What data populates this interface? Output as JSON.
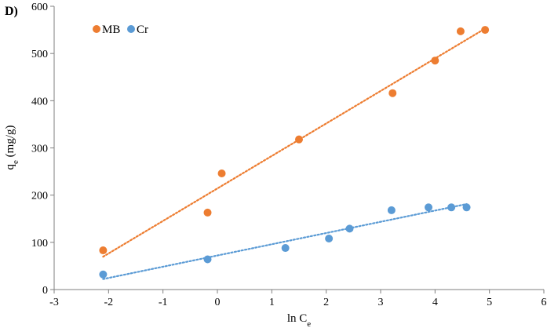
{
  "chart_data": {
    "type": "scatter",
    "panel_label": "D)",
    "xlabel": "ln C",
    "xlabel_sub": "e",
    "ylabel": "q",
    "ylabel_sub": "e",
    "ylabel_unit": " (mg/g)",
    "xlim": [
      -3,
      6
    ],
    "ylim": [
      0,
      600
    ],
    "x_ticks": [
      -3,
      -2,
      -1,
      0,
      1,
      2,
      3,
      4,
      5,
      6
    ],
    "y_ticks": [
      0,
      100,
      200,
      300,
      400,
      500,
      600
    ],
    "grid": false,
    "legend_position": "top-left",
    "series": [
      {
        "name": "MB",
        "color": "#ED7D31",
        "trendline": "linear dotted",
        "points": [
          {
            "x": -2.1,
            "y": 83
          },
          {
            "x": -0.18,
            "y": 163
          },
          {
            "x": 0.08,
            "y": 246
          },
          {
            "x": 1.5,
            "y": 318
          },
          {
            "x": 3.22,
            "y": 416
          },
          {
            "x": 4.0,
            "y": 485
          },
          {
            "x": 4.47,
            "y": 547
          },
          {
            "x": 4.92,
            "y": 550
          }
        ]
      },
      {
        "name": "Cr",
        "color": "#5B9BD5",
        "trendline": "linear dotted",
        "points": [
          {
            "x": -2.1,
            "y": 32
          },
          {
            "x": -0.18,
            "y": 64
          },
          {
            "x": 1.25,
            "y": 88
          },
          {
            "x": 2.05,
            "y": 108
          },
          {
            "x": 2.43,
            "y": 129
          },
          {
            "x": 3.2,
            "y": 168
          },
          {
            "x": 3.88,
            "y": 174
          },
          {
            "x": 4.3,
            "y": 174
          },
          {
            "x": 4.58,
            "y": 174
          }
        ]
      }
    ]
  }
}
